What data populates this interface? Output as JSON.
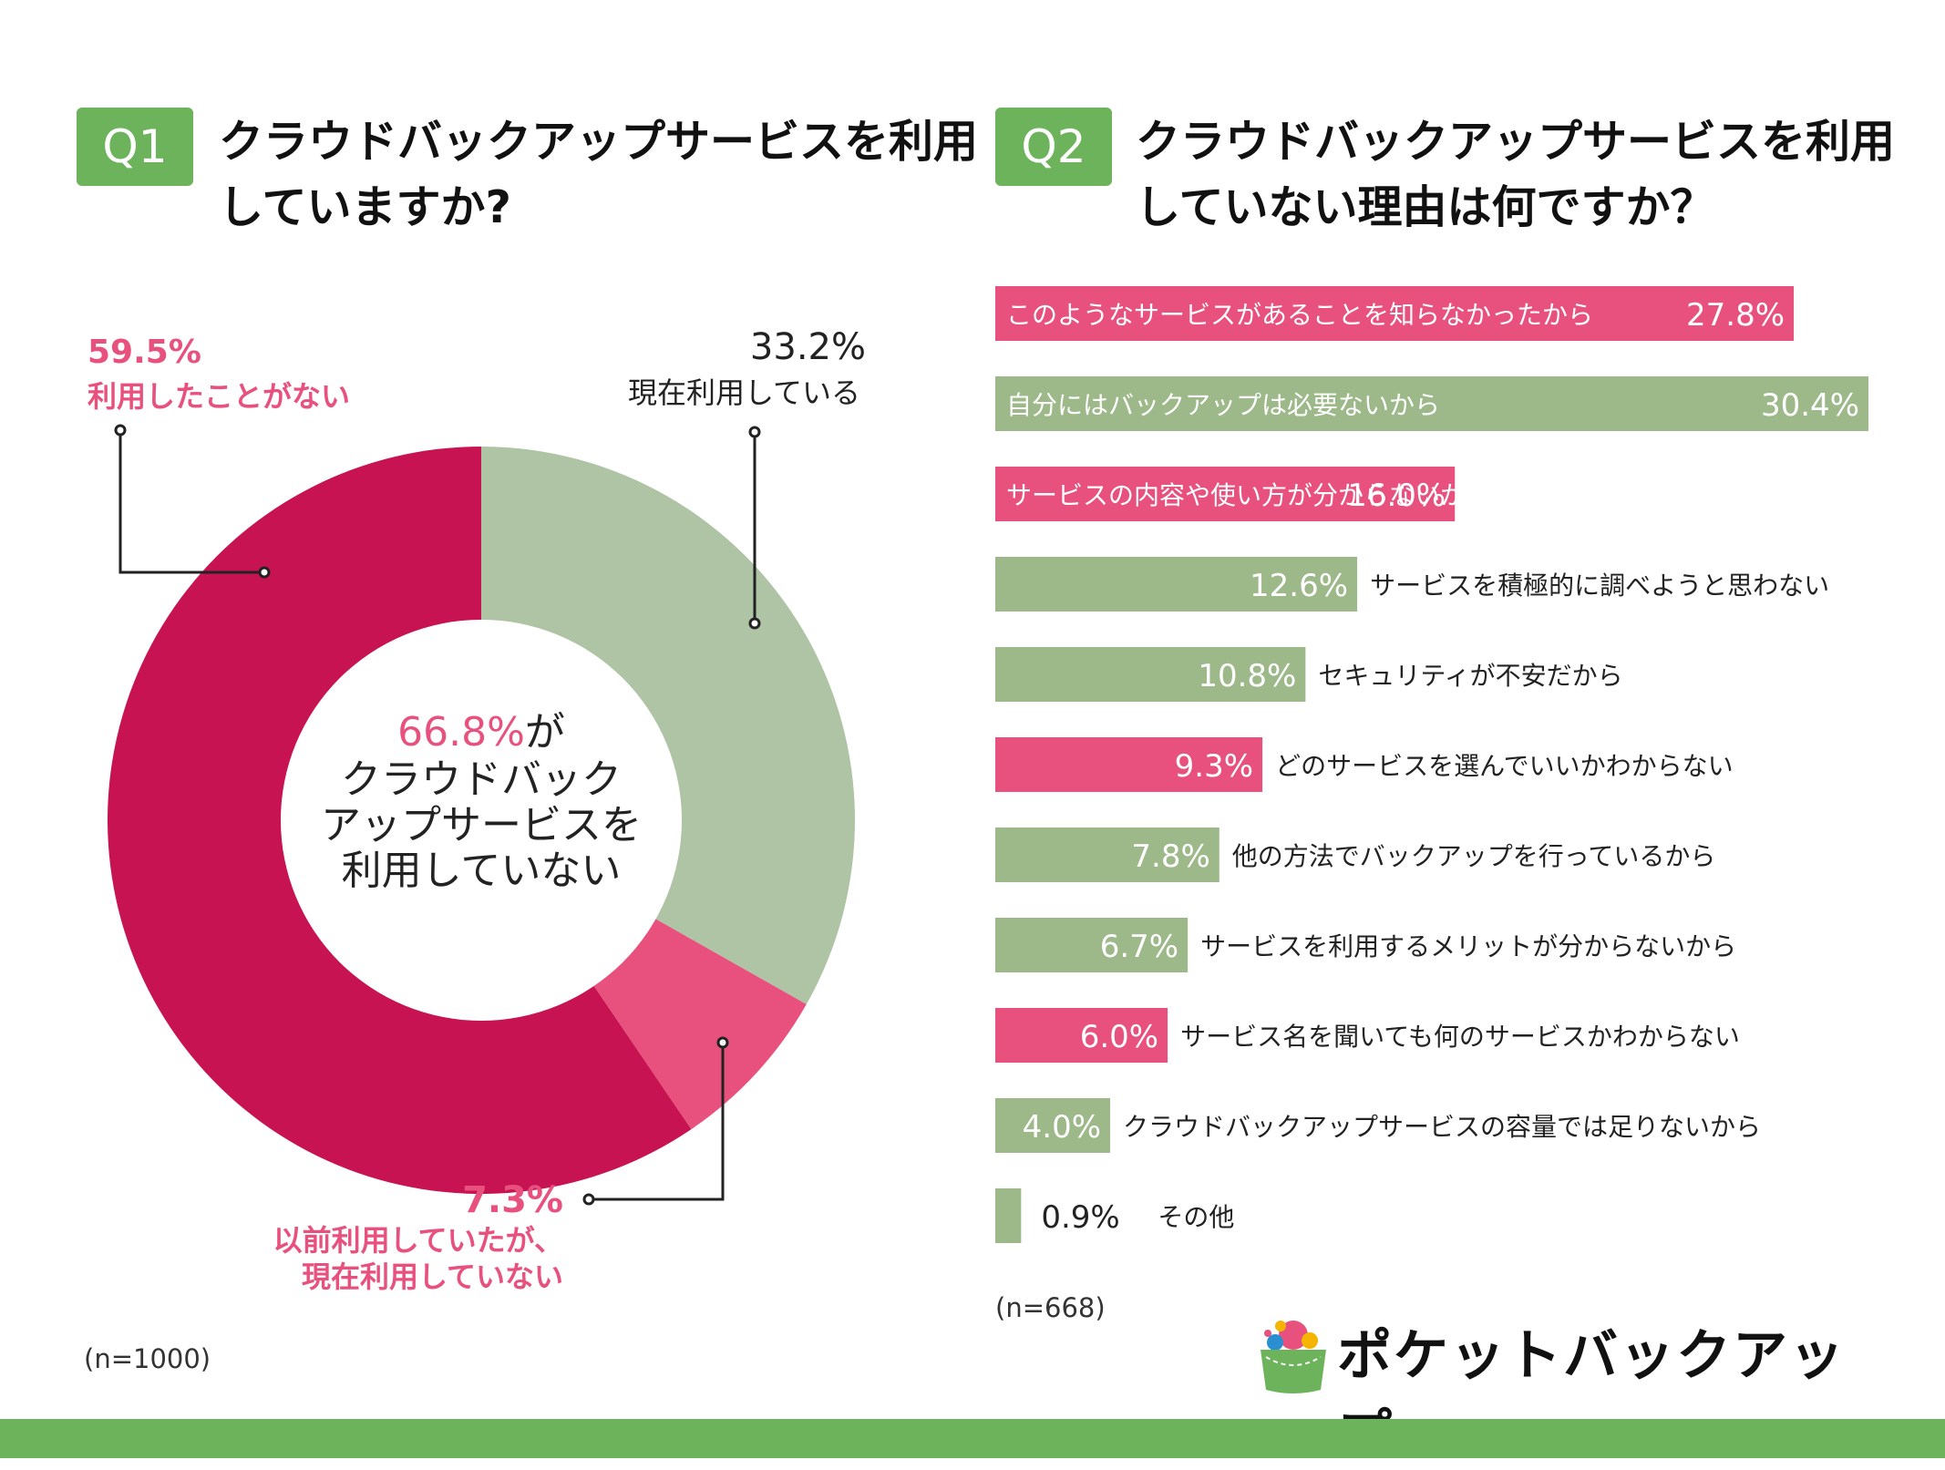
{
  "q1": {
    "badge": "Q1",
    "title": "クラウドバックアップサービスを利用\nしていますか?",
    "n_note": "(n=1000)"
  },
  "q2": {
    "badge": "Q2",
    "title": "クラウドバックアップサービスを利用\nしていない理由は何ですか？",
    "n_note": "(n=668)"
  },
  "center_label": {
    "pct": "66.8%",
    "suffix": "が",
    "line2": "クラウドバック",
    "line3": "アップサービスを",
    "line4": "利用していない"
  },
  "colors": {
    "green": "#6db35b",
    "sage": "#afc3a5",
    "crimson": "#c81352",
    "pink": "#e8517d",
    "bar_green": "#9db98a",
    "bar_pink": "#e8517d"
  },
  "chart_data": [
    {
      "type": "pie",
      "title": "クラウドバックアップサービスを利用していますか?",
      "categories": [
        "現在利用している",
        "以前利用していたが、現在利用していない",
        "利用したことがない"
      ],
      "values": [
        33.2,
        7.3,
        59.5
      ],
      "labels": [
        {
          "pct": "33.2%",
          "text": "現在利用している"
        },
        {
          "pct": "7.3%",
          "text1": "以前利用していたが、",
          "text2": "現在利用していない"
        },
        {
          "pct": "59.5%",
          "text": "利用したことがない"
        }
      ]
    },
    {
      "type": "bar",
      "orientation": "horizontal",
      "title": "クラウドバックアップサービスを利用していない理由は何ですか？",
      "xlim": [
        0,
        30.4
      ],
      "categories": [
        "このようなサービスがあることを知らなかったから",
        "自分にはバックアップは必要ないから",
        "サービスの内容や使い方が分からないから",
        "サービスを積極的に調べようと思わない",
        "セキュリティが不安だから",
        "どのサービスを選んでいいかわからない",
        "他の方法でバックアップを行っているから",
        "サービスを利用するメリットが分からないから",
        "サービス名を聞いても何のサービスかわからない",
        "クラウドバックアップサービスの容量では足りないから",
        "その他"
      ],
      "values": [
        27.8,
        30.4,
        16.0,
        12.6,
        10.8,
        9.3,
        7.8,
        6.7,
        6.0,
        4.0,
        0.9
      ],
      "value_labels": [
        "27.8%",
        "30.4%",
        "16.0%",
        "12.6%",
        "10.8%",
        "9.3%",
        "7.8%",
        "6.7%",
        "6.0%",
        "4.0%",
        "0.9%"
      ],
      "series_color": [
        "pink",
        "green",
        "pink",
        "green",
        "green",
        "pink",
        "green",
        "green",
        "pink",
        "green",
        "green"
      ]
    }
  ],
  "logo": {
    "text": "ポケットバックアップ"
  }
}
